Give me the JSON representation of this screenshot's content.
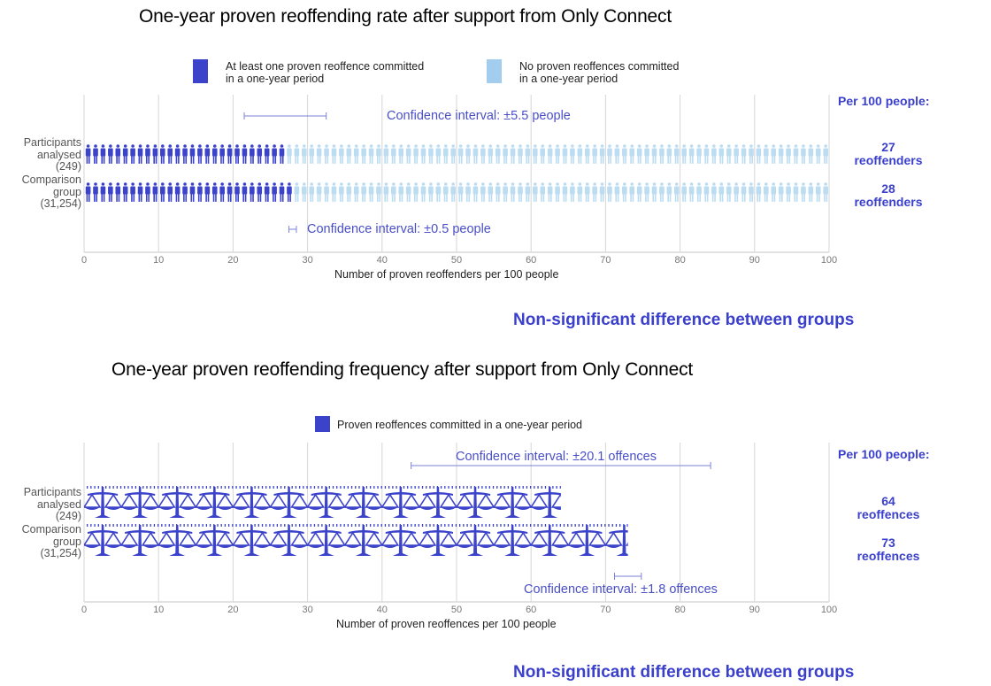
{
  "colors": {
    "accent": "#3b40cc",
    "reoffender": "#3c43cb",
    "non_reoffender": "#bcdcf2",
    "gridline": "#d6d6d6",
    "ci_line": "#7d82d8"
  },
  "chart_data": [
    {
      "type": "bar",
      "title": "One-year proven reoffending rate after support from Only Connect",
      "legend": [
        {
          "label_line1": "At least one proven reoffence committed",
          "label_line2": "in a one-year period",
          "color": "#3c43cb",
          "icon": "person-icon"
        },
        {
          "label_line1": "No proven reoffences committed",
          "label_line2": "in a one-year period",
          "color": "#a3cdef",
          "icon": "person-icon"
        }
      ],
      "legend_placement": "top-center",
      "categories": [
        {
          "line1": "Participants",
          "line2": "analysed",
          "line3": "(249)"
        },
        {
          "line1": "Comparison",
          "line2": "group",
          "line3": "(31,254)"
        }
      ],
      "series": [
        {
          "name": "At least one proven reoffence committed in a one-year period",
          "values": [
            27,
            28
          ]
        },
        {
          "name": "No proven reoffences committed in a one-year period",
          "values": [
            73,
            72
          ]
        }
      ],
      "confidence_intervals": [
        {
          "group": "Participants analysed",
          "center": 27,
          "plusminus": 5.5,
          "label": "Confidence interval: ±5.5 people",
          "position": "above"
        },
        {
          "group": "Comparison group",
          "center": 28,
          "plusminus": 0.5,
          "label": "Confidence interval: ±0.5 people",
          "position": "below"
        }
      ],
      "per100_header": "Per 100 people:",
      "value_labels": [
        {
          "value": "27",
          "unit": "reoffenders"
        },
        {
          "value": "28",
          "unit": "reoffenders"
        }
      ],
      "xlabel": "Number of proven reoffenders per 100 people",
      "ylabel": "",
      "xlim": [
        0,
        100
      ],
      "xticks": [
        0,
        10,
        20,
        30,
        40,
        50,
        60,
        70,
        80,
        90,
        100
      ],
      "grid": true,
      "significance": "Non-significant difference between groups"
    },
    {
      "type": "bar",
      "title": "One-year proven reoffending frequency after support from Only Connect",
      "legend": [
        {
          "label_line1": "Proven reoffences committed in a one-year period",
          "color": "#3c43cb",
          "icon": "scales-icon"
        }
      ],
      "legend_placement": "top-center",
      "categories": [
        {
          "line1": "Participants",
          "line2": "analysed",
          "line3": "(249)"
        },
        {
          "line1": "Comparison",
          "line2": "group",
          "line3": "(31,254)"
        }
      ],
      "series": [
        {
          "name": "Proven reoffences committed in a one-year period",
          "values": [
            64,
            73
          ]
        }
      ],
      "confidence_intervals": [
        {
          "group": "Participants analysed",
          "center": 64,
          "plusminus": 20.1,
          "label": "Confidence interval: ±20.1 offences",
          "position": "above"
        },
        {
          "group": "Comparison group",
          "center": 73,
          "plusminus": 1.8,
          "label": "Confidence interval: ±1.8 offences",
          "position": "below"
        }
      ],
      "per100_header": "Per 100 people:",
      "value_labels": [
        {
          "value": "64",
          "unit": "reoffences"
        },
        {
          "value": "73",
          "unit": "reoffences"
        }
      ],
      "xlabel": "Number of proven reoffences per 100 people",
      "ylabel": "",
      "xlim": [
        0,
        100
      ],
      "xticks": [
        0,
        10,
        20,
        30,
        40,
        50,
        60,
        70,
        80,
        90,
        100
      ],
      "grid": true,
      "significance": "Non-significant difference between groups"
    }
  ]
}
